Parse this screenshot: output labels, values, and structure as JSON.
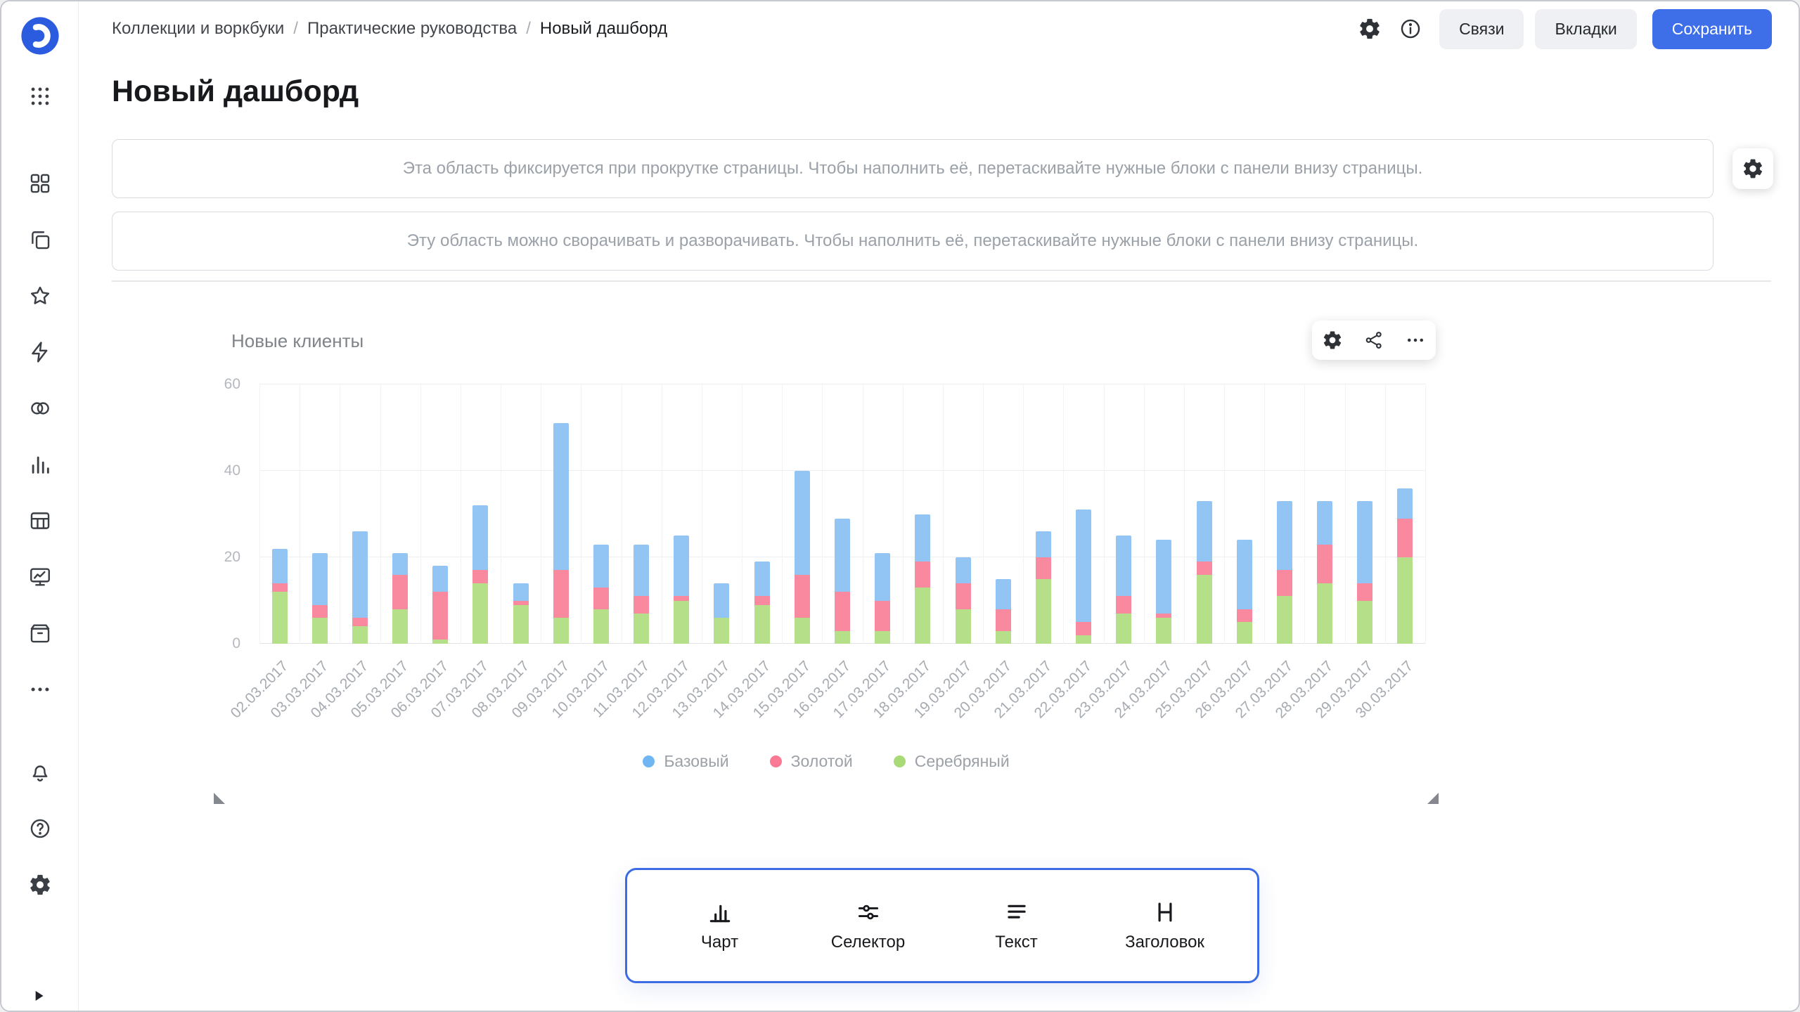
{
  "colors": {
    "accent": "#3e6fe8",
    "logo_blue": "#2b5ce0",
    "dock_border": "#3d6be5",
    "series_base": "#92c5f3",
    "series_gold": "#f9899f",
    "series_silver": "#b6df8a"
  },
  "sidebar": {
    "logo_icon": "datalens-logo",
    "apps_icon": "apps",
    "nav_icons": [
      "layout",
      "copy",
      "star",
      "zap",
      "circles",
      "bar-chart",
      "table",
      "monitor",
      "box",
      "dots"
    ],
    "utility_icons": [
      "bell",
      "help",
      "gear"
    ],
    "expand_icon": "triangle-right"
  },
  "header": {
    "breadcrumbs": [
      "Коллекции и воркбуки",
      "Практические руководства",
      "Новый дашборд"
    ],
    "separator": "/",
    "icons": [
      "gear",
      "info"
    ],
    "buttons": [
      {
        "label": "Связи",
        "style": "secondary"
      },
      {
        "label": "Вкладки",
        "style": "secondary"
      },
      {
        "label": "Сохранить",
        "style": "primary"
      }
    ]
  },
  "page": {
    "title": "Новый дашборд"
  },
  "placeholders": [
    {
      "text": "Эта область фиксируется при прокрутке страницы. Чтобы наполнить её, перетаскивайте нужные блоки с панели внизу страницы.",
      "has_settings_button": true
    },
    {
      "text": "Эту область можно сворачивать и разворачивать. Чтобы наполнить её, перетаскивайте нужные блоки с панели внизу страницы.",
      "has_settings_button": false
    }
  ],
  "widget": {
    "title": "Новые клиенты",
    "action_icons": [
      "gear",
      "share",
      "ellipsis"
    ]
  },
  "chart_data": {
    "type": "bar",
    "stacked": true,
    "title": "Новые клиенты",
    "categories": [
      "02.03.2017",
      "03.03.2017",
      "04.03.2017",
      "05.03.2017",
      "06.03.2017",
      "07.03.2017",
      "08.03.2017",
      "09.03.2017",
      "10.03.2017",
      "11.03.2017",
      "12.03.2017",
      "13.03.2017",
      "14.03.2017",
      "15.03.2017",
      "16.03.2017",
      "17.03.2017",
      "18.03.2017",
      "19.03.2017",
      "20.03.2017",
      "21.03.2017",
      "22.03.2017",
      "23.03.2017",
      "24.03.2017",
      "25.03.2017",
      "26.03.2017",
      "27.03.2017",
      "28.03.2017",
      "29.03.2017",
      "30.03.2017"
    ],
    "series": [
      {
        "name": "Базовый",
        "color": "#92c5f3",
        "dot": "#6fb6f2",
        "values": [
          8,
          12,
          20,
          5,
          6,
          15,
          4,
          34,
          10,
          12,
          14,
          8,
          8,
          24,
          17,
          11,
          11,
          6,
          7,
          6,
          26,
          14,
          17,
          14,
          16,
          16,
          10,
          19,
          7
        ]
      },
      {
        "name": "Золотой",
        "color": "#f9899f",
        "dot": "#fa7a93",
        "values": [
          2,
          3,
          2,
          8,
          11,
          3,
          1,
          11,
          5,
          4,
          1,
          0,
          2,
          10,
          9,
          7,
          6,
          6,
          5,
          5,
          3,
          4,
          1,
          3,
          3,
          6,
          9,
          4,
          9
        ]
      },
      {
        "name": "Серебряный",
        "color": "#b6df8a",
        "dot": "#a8da78",
        "values": [
          12,
          6,
          4,
          8,
          1,
          14,
          9,
          6,
          8,
          7,
          10,
          6,
          9,
          6,
          3,
          3,
          13,
          8,
          3,
          15,
          2,
          7,
          6,
          16,
          5,
          11,
          14,
          10,
          20
        ]
      }
    ],
    "stack_order": [
      "Серебряный",
      "Золотой",
      "Базовый"
    ],
    "ylim": [
      0,
      60
    ],
    "yticks": [
      0,
      20,
      40,
      60
    ],
    "grid": true,
    "legend_position": "bottom",
    "xlabel_rotation": -45
  },
  "bottom_panel": {
    "items": [
      {
        "label": "Чарт",
        "icon": "chart-bars"
      },
      {
        "label": "Селектор",
        "icon": "sliders"
      },
      {
        "label": "Текст",
        "icon": "text-lines"
      },
      {
        "label": "Заголовок",
        "icon": "heading"
      }
    ]
  }
}
